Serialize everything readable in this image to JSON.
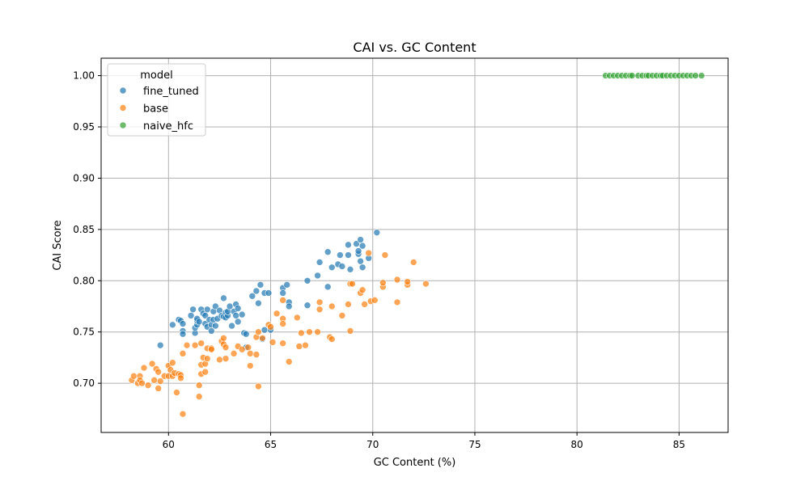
{
  "chart_data": {
    "type": "scatter",
    "title": "CAI vs. GC Content",
    "xlabel": "GC Content (%)",
    "ylabel": "CAI Score",
    "xlim": [
      56.7,
      87.4
    ],
    "ylim": [
      0.652,
      1.017
    ],
    "x_ticks": [
      60,
      65,
      70,
      75,
      80,
      85
    ],
    "y_ticks": [
      0.7,
      0.75,
      0.8,
      0.85,
      0.9,
      0.95,
      1.0
    ],
    "x_tick_labels": [
      "60",
      "65",
      "70",
      "75",
      "80",
      "85"
    ],
    "y_tick_labels": [
      "0.70",
      "0.75",
      "0.80",
      "0.85",
      "0.90",
      "0.95",
      "1.00"
    ],
    "grid": true,
    "legend": {
      "title": "model",
      "placement": "top-left"
    },
    "series": [
      {
        "name": "fine_tuned",
        "color": "#1f77b4",
        "points": [
          [
            59.6,
            0.737
          ],
          [
            60.2,
            0.757
          ],
          [
            60.5,
            0.762
          ],
          [
            60.6,
            0.761
          ],
          [
            60.7,
            0.758
          ],
          [
            60.7,
            0.751
          ],
          [
            60.7,
            0.748
          ],
          [
            61.1,
            0.766
          ],
          [
            61.2,
            0.772
          ],
          [
            61.3,
            0.749
          ],
          [
            61.3,
            0.754
          ],
          [
            61.4,
            0.757
          ],
          [
            61.4,
            0.761
          ],
          [
            61.4,
            0.763
          ],
          [
            61.5,
            0.76
          ],
          [
            61.6,
            0.772
          ],
          [
            61.7,
            0.768
          ],
          [
            61.8,
            0.758
          ],
          [
            61.8,
            0.766
          ],
          [
            61.9,
            0.755
          ],
          [
            61.9,
            0.772
          ],
          [
            62.0,
            0.762
          ],
          [
            62.1,
            0.757
          ],
          [
            62.1,
            0.751
          ],
          [
            62.2,
            0.762
          ],
          [
            62.2,
            0.77
          ],
          [
            62.3,
            0.775
          ],
          [
            62.3,
            0.756
          ],
          [
            62.4,
            0.763
          ],
          [
            62.5,
            0.771
          ],
          [
            62.6,
            0.766
          ],
          [
            62.7,
            0.783
          ],
          [
            62.7,
            0.765
          ],
          [
            62.8,
            0.769
          ],
          [
            62.8,
            0.764
          ],
          [
            62.9,
            0.766
          ],
          [
            62.9,
            0.77
          ],
          [
            63.0,
            0.775
          ],
          [
            63.1,
            0.756
          ],
          [
            63.2,
            0.77
          ],
          [
            63.3,
            0.777
          ],
          [
            63.3,
            0.766
          ],
          [
            63.4,
            0.773
          ],
          [
            63.4,
            0.76
          ],
          [
            63.6,
            0.767
          ],
          [
            63.7,
            0.749
          ],
          [
            63.8,
            0.748
          ],
          [
            63.8,
            0.735
          ],
          [
            64.1,
            0.785
          ],
          [
            64.3,
            0.79
          ],
          [
            64.4,
            0.778
          ],
          [
            64.5,
            0.796
          ],
          [
            64.6,
            0.743
          ],
          [
            64.7,
            0.788
          ],
          [
            64.7,
            0.752
          ],
          [
            64.9,
            0.788
          ],
          [
            65.0,
            0.752
          ],
          [
            65.6,
            0.793
          ],
          [
            65.6,
            0.788
          ],
          [
            65.8,
            0.796
          ],
          [
            65.9,
            0.779
          ],
          [
            65.9,
            0.775
          ],
          [
            66.8,
            0.8
          ],
          [
            66.8,
            0.776
          ],
          [
            67.3,
            0.805
          ],
          [
            67.4,
            0.818
          ],
          [
            67.8,
            0.794
          ],
          [
            67.8,
            0.828
          ],
          [
            68.0,
            0.813
          ],
          [
            68.3,
            0.816
          ],
          [
            68.4,
            0.825
          ],
          [
            68.5,
            0.814
          ],
          [
            68.8,
            0.835
          ],
          [
            68.8,
            0.825
          ],
          [
            68.9,
            0.811
          ],
          [
            69.2,
            0.836
          ],
          [
            69.3,
            0.826
          ],
          [
            69.3,
            0.829
          ],
          [
            69.4,
            0.84
          ],
          [
            69.4,
            0.819
          ],
          [
            69.5,
            0.834
          ],
          [
            69.5,
            0.813
          ],
          [
            69.8,
            0.822
          ],
          [
            70.2,
            0.847
          ]
        ]
      },
      {
        "name": "base",
        "color": "#ff7f0e",
        "points": [
          [
            58.2,
            0.703
          ],
          [
            58.3,
            0.707
          ],
          [
            58.5,
            0.7
          ],
          [
            58.6,
            0.707
          ],
          [
            58.6,
            0.703
          ],
          [
            58.7,
            0.7
          ],
          [
            58.8,
            0.715
          ],
          [
            59.0,
            0.698
          ],
          [
            59.2,
            0.719
          ],
          [
            59.3,
            0.703
          ],
          [
            59.4,
            0.714
          ],
          [
            59.5,
            0.711
          ],
          [
            59.5,
            0.695
          ],
          [
            59.6,
            0.702
          ],
          [
            59.8,
            0.707
          ],
          [
            60.0,
            0.717
          ],
          [
            60.0,
            0.707
          ],
          [
            60.1,
            0.713
          ],
          [
            60.2,
            0.72
          ],
          [
            60.2,
            0.707
          ],
          [
            60.3,
            0.71
          ],
          [
            60.4,
            0.691
          ],
          [
            60.5,
            0.709
          ],
          [
            60.6,
            0.708
          ],
          [
            60.6,
            0.705
          ],
          [
            60.7,
            0.729
          ],
          [
            60.7,
            0.67
          ],
          [
            60.9,
            0.737
          ],
          [
            61.3,
            0.737
          ],
          [
            61.5,
            0.687
          ],
          [
            61.5,
            0.698
          ],
          [
            61.6,
            0.739
          ],
          [
            61.6,
            0.718
          ],
          [
            61.6,
            0.709
          ],
          [
            61.7,
            0.725
          ],
          [
            61.8,
            0.711
          ],
          [
            61.8,
            0.719
          ],
          [
            61.9,
            0.734
          ],
          [
            61.9,
            0.724
          ],
          [
            62.1,
            0.734
          ],
          [
            62.1,
            0.733
          ],
          [
            62.5,
            0.723
          ],
          [
            62.6,
            0.741
          ],
          [
            62.7,
            0.744
          ],
          [
            62.7,
            0.738
          ],
          [
            62.8,
            0.724
          ],
          [
            62.8,
            0.735
          ],
          [
            63.2,
            0.729
          ],
          [
            63.4,
            0.736
          ],
          [
            63.6,
            0.733
          ],
          [
            63.9,
            0.735
          ],
          [
            64.0,
            0.729
          ],
          [
            64.0,
            0.717
          ],
          [
            64.3,
            0.745
          ],
          [
            64.3,
            0.728
          ],
          [
            64.4,
            0.75
          ],
          [
            64.4,
            0.697
          ],
          [
            64.6,
            0.744
          ],
          [
            64.9,
            0.757
          ],
          [
            65.0,
            0.755
          ],
          [
            65.1,
            0.74
          ],
          [
            65.3,
            0.768
          ],
          [
            65.6,
            0.781
          ],
          [
            65.6,
            0.763
          ],
          [
            65.6,
            0.758
          ],
          [
            65.6,
            0.739
          ],
          [
            65.9,
            0.721
          ],
          [
            66.3,
            0.764
          ],
          [
            66.4,
            0.736
          ],
          [
            66.5,
            0.749
          ],
          [
            66.7,
            0.737
          ],
          [
            66.9,
            0.75
          ],
          [
            67.3,
            0.75
          ],
          [
            67.4,
            0.779
          ],
          [
            67.4,
            0.772
          ],
          [
            67.9,
            0.745
          ],
          [
            68.0,
            0.775
          ],
          [
            68.0,
            0.743
          ],
          [
            68.5,
            0.766
          ],
          [
            68.8,
            0.777
          ],
          [
            68.9,
            0.797
          ],
          [
            68.9,
            0.751
          ],
          [
            69.0,
            0.797
          ],
          [
            69.4,
            0.788
          ],
          [
            69.5,
            0.791
          ],
          [
            69.6,
            0.777
          ],
          [
            69.8,
            0.827
          ],
          [
            69.9,
            0.78
          ],
          [
            70.1,
            0.781
          ],
          [
            70.5,
            0.794
          ],
          [
            70.5,
            0.798
          ],
          [
            70.6,
            0.825
          ],
          [
            71.2,
            0.779
          ],
          [
            71.2,
            0.801
          ],
          [
            71.7,
            0.796
          ],
          [
            71.7,
            0.799
          ],
          [
            72.0,
            0.818
          ],
          [
            72.6,
            0.797
          ]
        ]
      },
      {
        "name": "naive_hfc",
        "color": "#2ca02c",
        "points": [
          [
            81.4,
            1.0
          ],
          [
            81.6,
            1.0
          ],
          [
            81.8,
            1.0
          ],
          [
            82.0,
            1.0
          ],
          [
            82.2,
            1.0
          ],
          [
            82.4,
            1.0
          ],
          [
            82.6,
            1.0
          ],
          [
            82.7,
            1.0
          ],
          [
            83.0,
            1.0
          ],
          [
            83.2,
            1.0
          ],
          [
            83.4,
            1.0
          ],
          [
            83.5,
            1.0
          ],
          [
            83.7,
            1.0
          ],
          [
            83.9,
            1.0
          ],
          [
            84.1,
            1.0
          ],
          [
            84.2,
            1.0
          ],
          [
            84.4,
            1.0
          ],
          [
            84.6,
            1.0
          ],
          [
            84.8,
            1.0
          ],
          [
            85.0,
            1.0
          ],
          [
            85.2,
            1.0
          ],
          [
            85.4,
            1.0
          ],
          [
            85.6,
            1.0
          ],
          [
            85.8,
            1.0
          ],
          [
            86.1,
            1.0
          ]
        ]
      }
    ]
  }
}
